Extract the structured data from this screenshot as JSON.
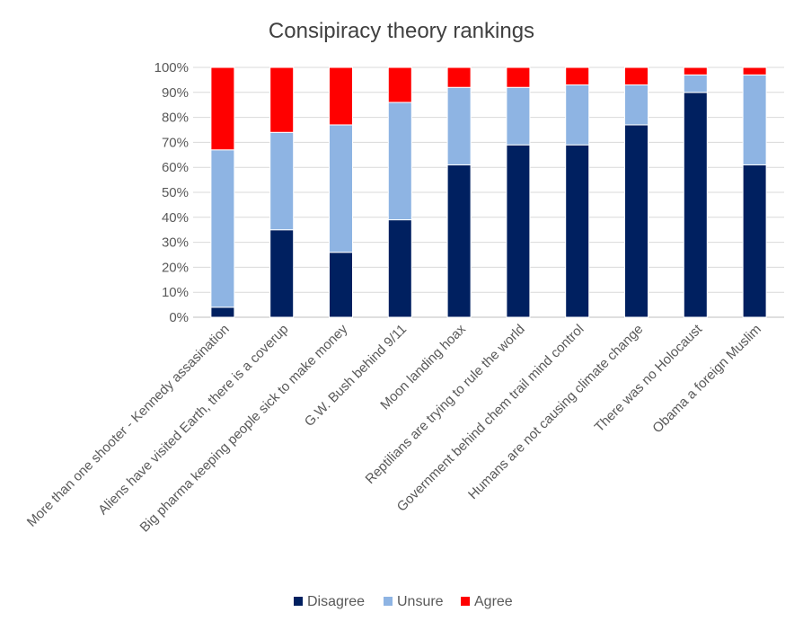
{
  "chart_data": {
    "type": "bar",
    "stacked": true,
    "normalized_percent": true,
    "title": "Consipiracy theory rankings",
    "xlabel": "",
    "ylabel": "",
    "ylim": [
      0,
      100
    ],
    "y_ticks": [
      "0%",
      "10%",
      "20%",
      "30%",
      "40%",
      "50%",
      "60%",
      "70%",
      "80%",
      "90%",
      "100%"
    ],
    "grid": true,
    "legend_position": "bottom",
    "categories": [
      "More than one shooter - Kennedy assasination",
      "Aliens have visited Earth, there is a coverup",
      "Big pharma keeping people sick to make money",
      "G.W. Bush behind 9/11",
      "Moon landing hoax",
      "Reptilians are trying to rule the world",
      "Government behind chem trail mind control",
      "Humans are not causing climate change",
      "There was no Holocaust",
      "Obama a foreign Muslim"
    ],
    "series": [
      {
        "name": "Disagree",
        "color": "#002060",
        "values": [
          4,
          35,
          26,
          39,
          61,
          69,
          69,
          77,
          90,
          61
        ]
      },
      {
        "name": "Unsure",
        "color": "#8EB4E3",
        "values": [
          63,
          39,
          51,
          47,
          31,
          23,
          24,
          16,
          7,
          36
        ]
      },
      {
        "name": "Agree",
        "color": "#FF0000",
        "values": [
          33,
          26,
          23,
          14,
          8,
          8,
          7,
          7,
          3,
          3
        ]
      }
    ]
  }
}
